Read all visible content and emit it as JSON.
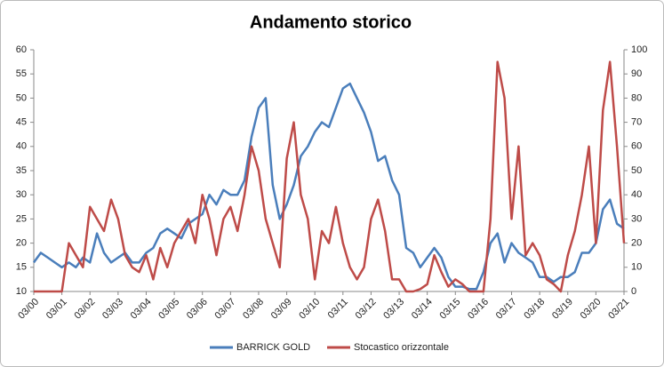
{
  "chart_data": {
    "type": "line",
    "title": "Andamento storico",
    "categories": [
      "03/00",
      null,
      null,
      null,
      "03/01",
      null,
      null,
      null,
      "03/02",
      null,
      null,
      null,
      "03/03",
      null,
      null,
      null,
      "03/04",
      null,
      null,
      null,
      "03/05",
      null,
      null,
      null,
      "03/06",
      null,
      null,
      null,
      "03/07",
      null,
      null,
      null,
      "03/08",
      null,
      null,
      null,
      "03/09",
      null,
      null,
      null,
      "03/10",
      null,
      null,
      null,
      "03/11",
      null,
      null,
      null,
      "03/12",
      null,
      null,
      null,
      "03/13",
      null,
      null,
      null,
      "03/14",
      null,
      null,
      null,
      "03/15",
      null,
      null,
      null,
      "03/16",
      null,
      null,
      null,
      "03/17",
      null,
      null,
      null,
      "03/18",
      null,
      null,
      null,
      "03/19",
      null,
      null,
      null,
      "03/20",
      null,
      null,
      null,
      "03/21"
    ],
    "series": [
      {
        "name": "BARRICK GOLD",
        "color": "#4a7ebb",
        "values": [
          16,
          18,
          17,
          16,
          15,
          16,
          15,
          17,
          16,
          22,
          18,
          16,
          17,
          18,
          16,
          16,
          18,
          19,
          22,
          23,
          22,
          21,
          24,
          25,
          26,
          30,
          28,
          31,
          30,
          30,
          33,
          42,
          48,
          50,
          32,
          25,
          28,
          32,
          38,
          40,
          43,
          45,
          44,
          48,
          52,
          53,
          50,
          47,
          43,
          37,
          38,
          33,
          30,
          19,
          18,
          15,
          17,
          19,
          17,
          13,
          11,
          11,
          10.5,
          10.5,
          14,
          20,
          22,
          16,
          20,
          18,
          17,
          16,
          13,
          13,
          12,
          13,
          13,
          14,
          18,
          18,
          20,
          27,
          29,
          24,
          23
        ]
      },
      {
        "name": "Stocastico orizzontale",
        "color": "#be4b48",
        "axis": "y2",
        "values": [
          0,
          0,
          0,
          0,
          0,
          20,
          15,
          10,
          35,
          30,
          25,
          38,
          30,
          15,
          10,
          8,
          15,
          5,
          18,
          10,
          20,
          25,
          30,
          20,
          40,
          30,
          15,
          30,
          35,
          25,
          40,
          60,
          50,
          30,
          20,
          10,
          55,
          70,
          40,
          30,
          5,
          25,
          20,
          35,
          20,
          10,
          5,
          10,
          30,
          38,
          25,
          5,
          5,
          0,
          0,
          1,
          3,
          15,
          8,
          2,
          5,
          3,
          0,
          0,
          0,
          30,
          95,
          80,
          30,
          60,
          15,
          20,
          15,
          5,
          3,
          0,
          15,
          25,
          40,
          60,
          20,
          75,
          95,
          60,
          20
        ]
      }
    ],
    "ylim": [
      10,
      60
    ],
    "yticks": [
      10,
      15,
      20,
      25,
      30,
      35,
      40,
      45,
      50,
      55,
      60
    ],
    "y2lim": [
      0,
      100
    ],
    "y2ticks": [
      0,
      10,
      20,
      30,
      40,
      50,
      60,
      70,
      80,
      90,
      100
    ],
    "legend": "bottom"
  }
}
